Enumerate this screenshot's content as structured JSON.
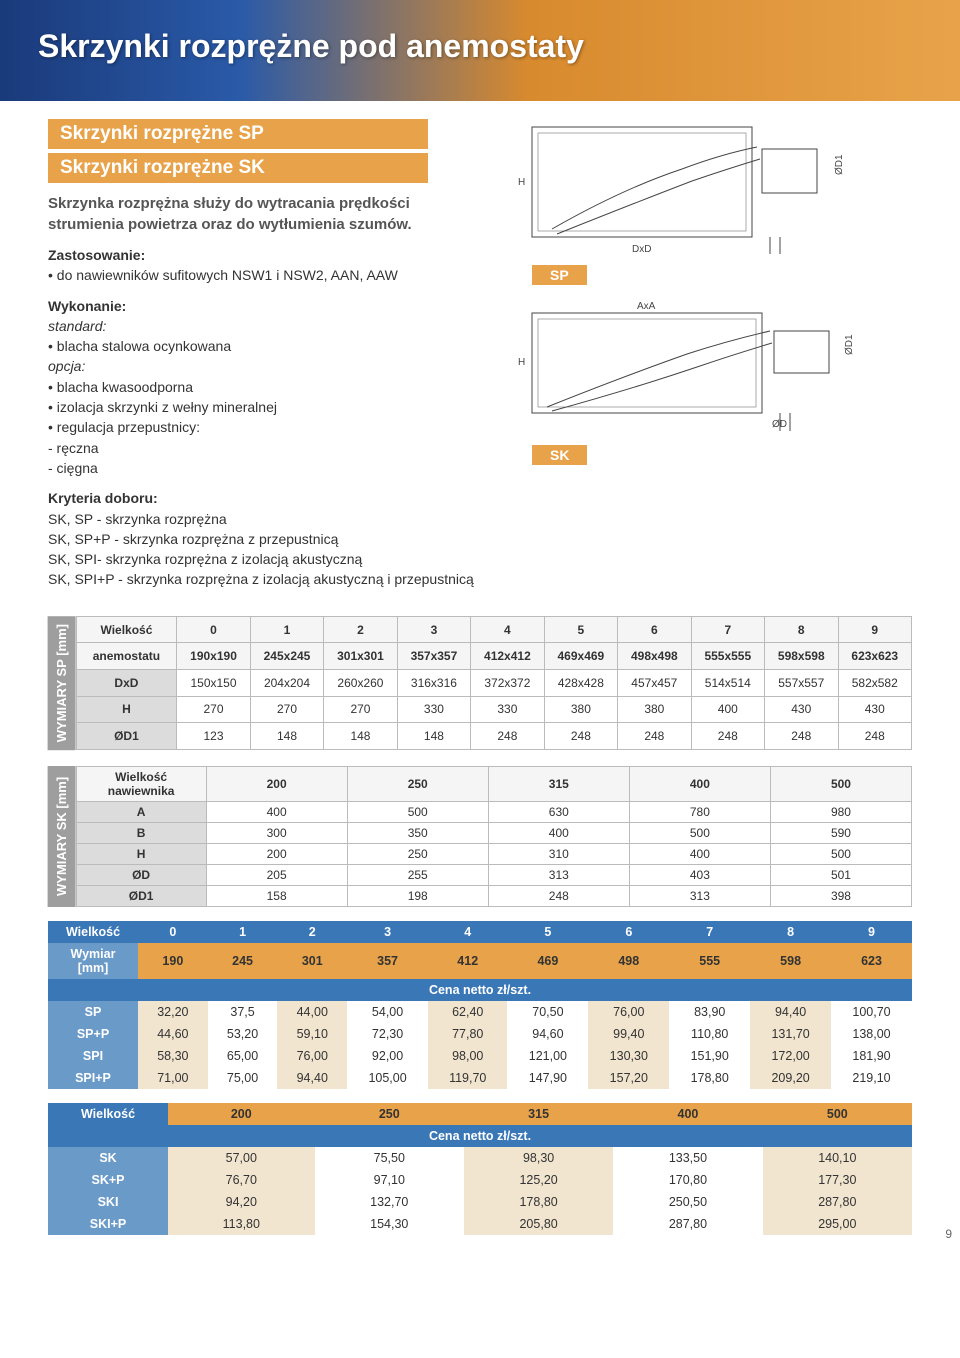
{
  "banner": {
    "title": "Skrzynki rozprężne pod anemostaty"
  },
  "subheaders": [
    "Skrzynki rozprężne SP",
    "Skrzynki rozprężne SK"
  ],
  "intro": "Skrzynka rozprężna służy do wytracania prędkości strumienia powietrza oraz do wytłumienia szumów.",
  "zastosowanie": {
    "lead": "Zastosowanie:",
    "line": "• do nawiewników sufitowych NSW1 i NSW2, AAN, AAW"
  },
  "wykonanie": {
    "lead": "Wykonanie:",
    "std": "standard:",
    "l1": "• blacha stalowa ocynkowana",
    "opc": "opcja:",
    "l2": "• blacha kwasoodporna",
    "l3": "• izolacja skrzynki z wełny mineralnej",
    "l4": "• regulacja przepustnicy:",
    "l5": "  - ręczna",
    "l6": "  - cięgna"
  },
  "kryteria": {
    "lead": "Kryteria doboru:",
    "l1": "SK, SP - skrzynka rozprężna",
    "l2": "SK, SP+P - skrzynka rozprężna z przepustnicą",
    "l3": "SK, SPI- skrzynka rozprężna z izolacją akustyczną",
    "l4": "SK, SPI+P - skrzynka rozprężna z izolacją akustyczną i  przepustnicą"
  },
  "diagLabels": {
    "sp": "SP",
    "sk": "SK"
  },
  "diagDims": {
    "H": "H",
    "DxD": "DxD",
    "OD1": "ØD1",
    "AxA": "AxA",
    "OD": "ØD"
  },
  "sp_table": {
    "vlabel": "WYMIARY\nSP [mm]",
    "header_top": [
      "Wielkość",
      "0",
      "1",
      "2",
      "3",
      "4",
      "5",
      "6",
      "7",
      "8",
      "9"
    ],
    "header_bot": [
      "anemostatu",
      "190x190",
      "245x245",
      "301x301",
      "357x357",
      "412x412",
      "469x469",
      "498x498",
      "555x555",
      "598x598",
      "623x623"
    ],
    "rows": [
      [
        "DxD",
        "150x150",
        "204x204",
        "260x260",
        "316x316",
        "372x372",
        "428x428",
        "457x457",
        "514x514",
        "557x557",
        "582x582"
      ],
      [
        "H",
        "270",
        "270",
        "270",
        "330",
        "330",
        "380",
        "380",
        "400",
        "430",
        "430"
      ],
      [
        "ØD1",
        "123",
        "148",
        "148",
        "148",
        "248",
        "248",
        "248",
        "248",
        "248",
        "248"
      ]
    ]
  },
  "sk_table": {
    "vlabel": "WYMIARY\nSK [mm]",
    "header": [
      "Wielkość nawiewnika",
      "200",
      "250",
      "315",
      "400",
      "500"
    ],
    "rows": [
      [
        "A",
        "400",
        "500",
        "630",
        "780",
        "980"
      ],
      [
        "B",
        "300",
        "350",
        "400",
        "500",
        "590"
      ],
      [
        "H",
        "200",
        "250",
        "310",
        "400",
        "500"
      ],
      [
        "ØD",
        "205",
        "255",
        "313",
        "403",
        "501"
      ],
      [
        "ØD1",
        "158",
        "198",
        "248",
        "313",
        "398"
      ]
    ]
  },
  "price_sp": {
    "cols": [
      "0",
      "1",
      "2",
      "3",
      "4",
      "5",
      "6",
      "7",
      "8",
      "9"
    ],
    "dims": [
      "190",
      "245",
      "301",
      "357",
      "412",
      "469",
      "498",
      "555",
      "598",
      "623"
    ],
    "wielkosc": "Wielkość",
    "wymiar": "Wymiar [mm]",
    "band": "Cena netto zł/szt.",
    "rows": [
      [
        "SP",
        "32,20",
        "37,5",
        "44,00",
        "54,00",
        "62,40",
        "70,50",
        "76,00",
        "83,90",
        "94,40",
        "100,70"
      ],
      [
        "SP+P",
        "44,60",
        "53,20",
        "59,10",
        "72,30",
        "77,80",
        "94,60",
        "99,40",
        "110,80",
        "131,70",
        "138,00"
      ],
      [
        "SPI",
        "58,30",
        "65,00",
        "76,00",
        "92,00",
        "98,00",
        "121,00",
        "130,30",
        "151,90",
        "172,00",
        "181,90"
      ],
      [
        "SPI+P",
        "71,00",
        "75,00",
        "94,40",
        "105,00",
        "119,70",
        "147,90",
        "157,20",
        "178,80",
        "209,20",
        "219,10"
      ]
    ]
  },
  "price_sk": {
    "cols": [
      "200",
      "250",
      "315",
      "400",
      "500"
    ],
    "wielkosc": "Wielkość",
    "band": "Cena netto zł/szt.",
    "rows": [
      [
        "SK",
        "57,00",
        "75,50",
        "98,30",
        "133,50",
        "140,10"
      ],
      [
        "SK+P",
        "76,70",
        "97,10",
        "125,20",
        "170,80",
        "177,30"
      ],
      [
        "SKI",
        "94,20",
        "132,70",
        "178,80",
        "250,50",
        "287,80"
      ],
      [
        "SKI+P",
        "113,80",
        "154,30",
        "205,80",
        "287,80",
        "295,00"
      ]
    ]
  },
  "pageNumber": "9",
  "colors": {
    "orange": "#e8a34a",
    "blue": "#3a77b7",
    "lightblue": "#6a9ac8",
    "grey": "#9e9e9e",
    "cream": "#f1e5d0"
  }
}
